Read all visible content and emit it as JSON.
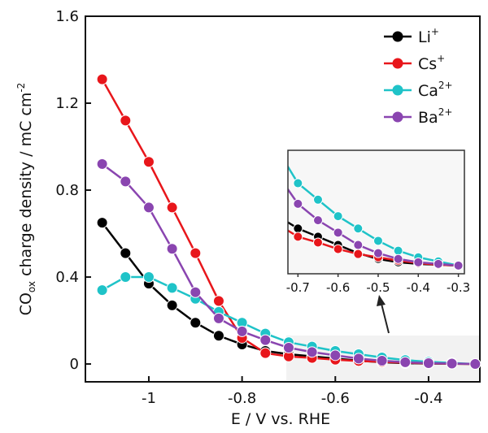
{
  "chart_data": {
    "type": "line",
    "xlabel": "E / V vs. RHE",
    "ylabel": "CO_ox charge density / mC cm^-2",
    "ylabel_parts": {
      "a": "CO",
      "sub": "ox",
      "b": " charge density / mC cm",
      "sup": "-2"
    },
    "xlim": [
      -1.136,
      -0.29
    ],
    "ylim": [
      -0.082,
      1.6
    ],
    "xticks": [
      -1,
      -0.8,
      -0.6,
      -0.4
    ],
    "xtick_labels": [
      "-1",
      "-0.8",
      "-0.6",
      "-0.4"
    ],
    "yticks": [
      0,
      0.4,
      0.8,
      1.2,
      1.6
    ],
    "ytick_labels": [
      "0",
      "0.4",
      "0.8",
      "1.2",
      "1.6"
    ],
    "x": [
      -1.1,
      -1.05,
      -1.0,
      -0.95,
      -0.9,
      -0.85,
      -0.8,
      -0.75,
      -0.7,
      -0.65,
      -0.6,
      -0.55,
      -0.5,
      -0.45,
      -0.4,
      -0.35,
      -0.3
    ],
    "series": [
      {
        "name": "Li",
        "sup": "+",
        "color": "#000000",
        "values": [
          0.65,
          0.51,
          0.37,
          0.27,
          0.19,
          0.13,
          0.09,
          0.06,
          0.045,
          0.035,
          0.025,
          0.015,
          0.008,
          0.004,
          0.002,
          0.001,
          0.0
        ]
      },
      {
        "name": "Cs",
        "sup": "+",
        "color": "#e8161b",
        "values": [
          1.31,
          1.12,
          0.93,
          0.72,
          0.51,
          0.29,
          0.12,
          0.05,
          0.035,
          0.028,
          0.02,
          0.014,
          0.01,
          0.006,
          0.003,
          0.001,
          0.0
        ]
      },
      {
        "name": "Ca",
        "sup": "2+",
        "color": "#1fc3c8",
        "values": [
          0.34,
          0.4,
          0.4,
          0.35,
          0.3,
          0.24,
          0.19,
          0.14,
          0.1,
          0.08,
          0.06,
          0.045,
          0.03,
          0.018,
          0.01,
          0.005,
          0.0
        ]
      },
      {
        "name": "Ba",
        "sup": "2+",
        "color": "#8a45b0",
        "values": [
          0.92,
          0.84,
          0.72,
          0.53,
          0.33,
          0.21,
          0.15,
          0.11,
          0.075,
          0.055,
          0.04,
          0.025,
          0.015,
          0.008,
          0.004,
          0.002,
          0.0
        ]
      }
    ],
    "legend": "top-right",
    "inset": {
      "xlim": [
        -0.725,
        -0.285
      ],
      "ylim": [
        -0.01,
        0.14
      ],
      "xticks": [
        -0.7,
        -0.6,
        -0.5,
        -0.4,
        -0.3
      ],
      "xtick_labels": [
        "-0.7",
        "-0.6",
        "-0.5",
        "-0.4",
        "-0.3"
      ]
    }
  }
}
